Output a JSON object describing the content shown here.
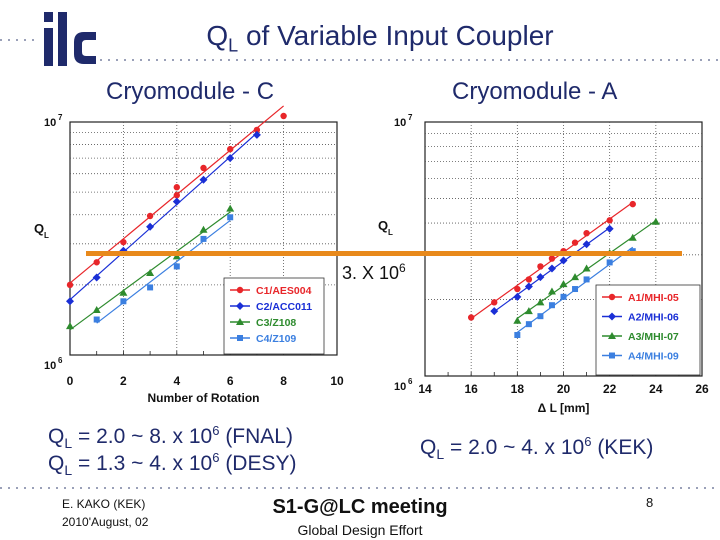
{
  "slide": {
    "title_main": "Q",
    "title_sub": "L",
    "title_rest": " of Variable Input Coupler",
    "logo_text": "ilc",
    "cm_left": "Cryomodule - C",
    "cm_right": "Cryomodule - A",
    "marker_text": "3. X 10",
    "marker_exp": "6",
    "formula_left_1": {
      "q": "Q",
      "sub": "L",
      "text": " = 2.0 ~ 8. x 10",
      "exp": "6",
      "tail": " (FNAL)"
    },
    "formula_left_2": {
      "q": "Q",
      "sub": "L",
      "text": " = 1.3 ~ 4. x 10",
      "exp": "6",
      "tail": " (DESY)"
    },
    "formula_right": {
      "q": "Q",
      "sub": "L",
      "text": " = 2.0 ~ 4. x 10",
      "exp": "6",
      "tail": " (KEK)"
    },
    "author": "E. KAKO (KEK)",
    "date": "2010'August,  02",
    "meeting": "S1-G@LC meeting",
    "org": "Global Design Effort",
    "page": "8",
    "colors": {
      "title": "#1f2a6b",
      "orange": "#e8891b",
      "red": "#e8262a",
      "blue": "#1a2fd6",
      "green": "#2e8b2e",
      "lightblue": "#3b7fe0"
    }
  },
  "chart_data": [
    {
      "type": "line",
      "title": "Cryomodule - C",
      "xlabel": "Number of Rotation",
      "ylabel": "Q",
      "ylabel_sub": "L",
      "log_y": true,
      "xlim": [
        0,
        10
      ],
      "ylim": [
        1000000,
        10000000
      ],
      "x_ticks": [
        "0",
        "2",
        "4",
        "6",
        "8",
        "10"
      ],
      "y_ticks": [
        {
          "base": "10",
          "exp": "6"
        },
        {
          "base": "10",
          "exp": "7"
        }
      ],
      "grid": true,
      "legend_position": "bottom-right",
      "series": [
        {
          "name": "C1/AES004",
          "color": "#e8262a",
          "marker": "circle",
          "x": [
            0,
            1,
            2,
            3,
            4,
            4,
            5,
            6,
            7,
            8
          ],
          "y": [
            2000000,
            2500000,
            3050000,
            3950000,
            4850000,
            5250000,
            6350000,
            7650000,
            9250000,
            11200000
          ]
        },
        {
          "name": "C2/ACC011",
          "color": "#1a2fd6",
          "marker": "diamond",
          "x": [
            0,
            1,
            2,
            3,
            4,
            5,
            6,
            7
          ],
          "y": [
            1700000,
            2150000,
            2800000,
            3550000,
            4550000,
            5650000,
            7000000,
            8800000
          ]
        },
        {
          "name": "C3/Z108",
          "color": "#2e8b2e",
          "marker": "triangle",
          "x": [
            0,
            1,
            2,
            3,
            4,
            5,
            6
          ],
          "y": [
            1330000,
            1560000,
            1850000,
            2250000,
            2650000,
            3450000,
            4250000
          ]
        },
        {
          "name": "C4/Z109",
          "color": "#3b7fe0",
          "marker": "square",
          "x": [
            1,
            2,
            3,
            4,
            5,
            6
          ],
          "y": [
            1420000,
            1700000,
            1950000,
            2400000,
            3150000,
            3900000
          ]
        }
      ]
    },
    {
      "type": "line",
      "title": "Cryomodule - A",
      "xlabel": "Δ L [mm]",
      "ylabel": "Q",
      "ylabel_sub": "L",
      "log_y": true,
      "xlim": [
        14,
        26
      ],
      "ylim": [
        1000000,
        10000000
      ],
      "x_ticks": [
        "14",
        "16",
        "18",
        "20",
        "22",
        "24",
        "26"
      ],
      "y_ticks": [
        {
          "base": "10",
          "exp": "6"
        },
        {
          "base": "10",
          "exp": "7"
        }
      ],
      "grid": true,
      "legend_position": "bottom-right",
      "series": [
        {
          "name": "A1/MHI-05",
          "color": "#e8262a",
          "marker": "circle",
          "x": [
            16,
            17,
            18,
            18.5,
            19,
            19.5,
            20,
            20.5,
            21,
            22,
            23
          ],
          "y": [
            1700000,
            1950000,
            2200000,
            2400000,
            2700000,
            2900000,
            3100000,
            3350000,
            3650000,
            4100000,
            4750000
          ]
        },
        {
          "name": "A2/MHI-06",
          "color": "#1a2fd6",
          "marker": "diamond",
          "x": [
            17,
            18,
            18.5,
            19,
            19.5,
            20,
            21,
            22
          ],
          "y": [
            1800000,
            2050000,
            2250000,
            2450000,
            2650000,
            2850000,
            3300000,
            3800000
          ]
        },
        {
          "name": "A3/MHI-07",
          "color": "#2e8b2e",
          "marker": "triangle",
          "x": [
            18,
            18.5,
            19,
            19.5,
            20,
            20.5,
            21,
            22,
            23,
            24
          ],
          "y": [
            1650000,
            1800000,
            1950000,
            2150000,
            2300000,
            2450000,
            2650000,
            3050000,
            3500000,
            4050000
          ]
        },
        {
          "name": "A4/MHI-09",
          "color": "#3b7fe0",
          "marker": "square",
          "x": [
            18,
            18.5,
            19,
            19.5,
            20,
            20.5,
            21,
            22,
            23
          ],
          "y": [
            1450000,
            1600000,
            1720000,
            1900000,
            2050000,
            2200000,
            2400000,
            2800000,
            3100000
          ]
        }
      ]
    }
  ]
}
